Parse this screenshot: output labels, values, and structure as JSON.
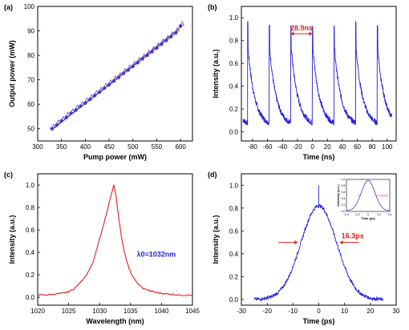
{
  "chart_data": [
    {
      "panel": "(a)",
      "type": "scatter",
      "xlabel": "Pump power (mW)",
      "ylabel": "Output power (mW)",
      "xlim": [
        300,
        625
      ],
      "ylim": [
        45,
        100
      ],
      "xticks": [
        300,
        350,
        400,
        450,
        500,
        550,
        600
      ],
      "yticks": [
        50,
        60,
        70,
        80,
        90,
        100
      ],
      "grid": false,
      "series": [
        {
          "marker": "circle",
          "color": "#3a3ad8",
          "x": [
            330,
            340,
            350,
            360,
            370,
            380,
            390,
            400,
            410,
            420,
            430,
            440,
            450,
            460,
            470,
            480,
            490,
            500,
            510,
            520,
            530,
            540,
            550,
            560,
            570,
            580,
            590,
            600
          ],
          "y": [
            50.0,
            51.5,
            53.2,
            54.6,
            56.3,
            57.6,
            59.2,
            60.5,
            62.0,
            63.6,
            65.0,
            66.6,
            68.0,
            69.5,
            71.0,
            72.6,
            74.0,
            75.5,
            77.0,
            78.6,
            80.0,
            81.5,
            83.0,
            84.6,
            86.1,
            87.6,
            89.2,
            92.0
          ]
        },
        {
          "marker": "triangle",
          "color": "#3a3ad8",
          "x": [
            330,
            340,
            350,
            360,
            370,
            380,
            390,
            400,
            410,
            420,
            430,
            440,
            450,
            460,
            470,
            480,
            490,
            500,
            510,
            520,
            530,
            540,
            550,
            560,
            570,
            580,
            590,
            600
          ],
          "y": [
            50.4,
            52.2,
            53.6,
            55.3,
            56.7,
            58.3,
            59.7,
            61.2,
            62.6,
            64.2,
            65.6,
            67.2,
            68.6,
            70.2,
            71.6,
            73.2,
            74.7,
            76.2,
            77.7,
            79.2,
            80.7,
            82.2,
            83.7,
            85.3,
            86.8,
            88.3,
            89.9,
            92.4
          ]
        },
        {
          "type": "line",
          "color": "#e02020",
          "x": [
            330,
            600
          ],
          "y": [
            49.6,
            91.4
          ]
        }
      ]
    },
    {
      "panel": "(b)",
      "type": "line",
      "xlabel": "Time (ns)",
      "ylabel": "Intensity (a.u.)",
      "xlim": [
        -95,
        112
      ],
      "ylim": [
        -0.08,
        1.1
      ],
      "xticks": [
        -80,
        -60,
        -40,
        -20,
        0,
        20,
        40,
        60,
        80,
        100
      ],
      "yticks": [
        0.0,
        0.2,
        0.4,
        0.6,
        0.8,
        1.0
      ],
      "grid": false,
      "color": "#2424d8",
      "annotation": {
        "text": "28.9ns",
        "x1": -29,
        "x2": 0,
        "y": 0.86
      },
      "pulse_train": {
        "period_ns": 28.9,
        "peak_times_ns": [
          -86.7,
          -57.8,
          -28.9,
          0,
          28.9,
          57.8,
          86.7
        ],
        "peak_values": [
          0.95,
          0.92,
          0.93,
          0.93,
          0.92,
          0.96,
          0.93
        ],
        "start_level_after_peak": 0.73,
        "floor_level": 0.05,
        "range_ns": [
          -93,
          106
        ]
      }
    },
    {
      "panel": "(c)",
      "type": "line",
      "xlabel": "Wavelength (nm)",
      "ylabel": "Intensity (a.u.)",
      "xlim": [
        1020,
        1045
      ],
      "ylim": [
        -0.07,
        1.1
      ],
      "xticks": [
        1020,
        1025,
        1030,
        1035,
        1040,
        1045
      ],
      "yticks": [
        0.0,
        0.2,
        0.4,
        0.6,
        0.8,
        1.0
      ],
      "grid": false,
      "color": "#e02020",
      "annotation": {
        "text": "λ0=1032nm",
        "x": 1036.0,
        "y": 0.36
      },
      "x": [
        1020,
        1021,
        1022,
        1023,
        1024,
        1025,
        1026,
        1027,
        1028,
        1029,
        1029.5,
        1030,
        1030.5,
        1031,
        1031.5,
        1032,
        1032.3,
        1032.6,
        1033,
        1033.5,
        1034,
        1034.5,
        1035,
        1036,
        1037,
        1038,
        1039,
        1040,
        1041,
        1042,
        1043,
        1044,
        1045
      ],
      "y": [
        0.02,
        0.02,
        0.025,
        0.03,
        0.035,
        0.05,
        0.08,
        0.14,
        0.21,
        0.32,
        0.42,
        0.52,
        0.62,
        0.72,
        0.83,
        0.94,
        1.0,
        0.92,
        0.75,
        0.55,
        0.4,
        0.3,
        0.22,
        0.13,
        0.08,
        0.06,
        0.045,
        0.035,
        0.03,
        0.025,
        0.02,
        0.02,
        0.02
      ]
    },
    {
      "panel": "(d)",
      "type": "line",
      "xlabel": "Time (ps)",
      "ylabel": "Intensity (a.u.)",
      "xlim": [
        -30,
        30
      ],
      "ylim": [
        -0.05,
        1.1
      ],
      "xticks": [
        -30,
        -20,
        -10,
        0,
        10,
        20,
        30
      ],
      "yticks": [
        0.0,
        0.2,
        0.4,
        0.6,
        0.8,
        1.0
      ],
      "grid": false,
      "color": "#2424d8",
      "annotation": {
        "text": "16.3ps",
        "fwhm_ps": 16.3,
        "y": 0.5
      },
      "envelope": {
        "center_ps": 0,
        "fwhm_ps": 16.3,
        "peak": 0.82,
        "spike_peak": 1.0,
        "range_ps": [
          -25,
          25
        ]
      },
      "inset": {
        "xlabel": "Time (ps)",
        "ylabel": "Intensity (a.u.)",
        "xlim": [
          -0.4,
          0.4
        ],
        "ylim": [
          0.0,
          1.0
        ],
        "xticks": [
          -0.4,
          -0.2,
          0.0,
          0.2,
          0.4
        ],
        "yticks": [
          0.0,
          0.2,
          0.4,
          0.6,
          0.8,
          1.0
        ],
        "annotation": {
          "text": "293 fs",
          "fwhm_ps": 0.293
        },
        "color": "#2424d8"
      }
    }
  ]
}
